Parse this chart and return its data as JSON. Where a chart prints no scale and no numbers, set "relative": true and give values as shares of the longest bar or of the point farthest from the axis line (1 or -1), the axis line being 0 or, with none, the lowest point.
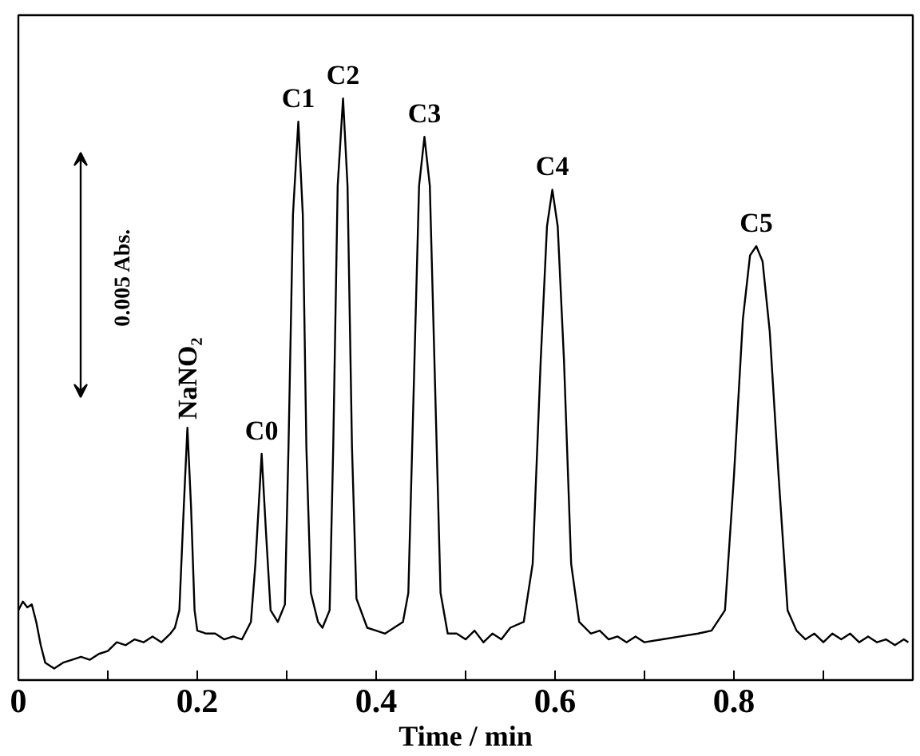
{
  "chart_data": {
    "type": "line",
    "relative": true,
    "xlabel": "Time / min",
    "xlim": [
      0,
      1.0
    ],
    "xticks": [
      0,
      {
        "value": 0.1,
        "label": null
      },
      0.2,
      {
        "value": 0.3,
        "label": null
      },
      0.4,
      {
        "value": 0.5,
        "label": null
      },
      0.6,
      {
        "value": 0.7,
        "label": null
      },
      0.8,
      {
        "value": 0.9,
        "label": null
      }
    ],
    "grid": false,
    "marker": "none",
    "line_style": "solid",
    "series": [
      {
        "color": "#000000",
        "x": [
          0.0,
          0.005,
          0.01,
          0.015,
          0.02,
          0.025,
          0.03,
          0.04,
          0.05,
          0.06,
          0.07,
          0.08,
          0.09,
          0.1,
          0.11,
          0.12,
          0.13,
          0.14,
          0.15,
          0.16,
          0.17,
          0.175,
          0.18,
          0.185,
          0.189,
          0.193,
          0.197,
          0.2,
          0.21,
          0.22,
          0.23,
          0.24,
          0.25,
          0.26,
          0.265,
          0.272,
          0.277,
          0.282,
          0.29,
          0.298,
          0.302,
          0.307,
          0.313,
          0.318,
          0.322,
          0.327,
          0.335,
          0.34,
          0.348,
          0.352,
          0.357,
          0.363,
          0.368,
          0.373,
          0.378,
          0.39,
          0.4,
          0.41,
          0.42,
          0.43,
          0.436,
          0.442,
          0.448,
          0.454,
          0.46,
          0.466,
          0.472,
          0.48,
          0.49,
          0.5,
          0.51,
          0.52,
          0.53,
          0.54,
          0.55,
          0.565,
          0.575,
          0.584,
          0.591,
          0.597,
          0.603,
          0.61,
          0.618,
          0.627,
          0.64,
          0.65,
          0.66,
          0.67,
          0.68,
          0.69,
          0.7,
          0.72,
          0.74,
          0.76,
          0.775,
          0.79,
          0.8,
          0.81,
          0.818,
          0.825,
          0.832,
          0.84,
          0.85,
          0.86,
          0.87,
          0.88,
          0.89,
          0.9,
          0.91,
          0.92,
          0.93,
          0.94,
          0.95,
          0.96,
          0.97,
          0.98,
          0.99,
          0.995
        ],
        "values": [
          0.12,
          0.135,
          0.125,
          0.13,
          0.1,
          0.06,
          0.03,
          0.02,
          0.03,
          0.035,
          0.04,
          0.035,
          0.045,
          0.05,
          0.065,
          0.06,
          0.07,
          0.065,
          0.075,
          0.065,
          0.08,
          0.09,
          0.12,
          0.3,
          0.434,
          0.3,
          0.12,
          0.085,
          0.08,
          0.08,
          0.07,
          0.075,
          0.07,
          0.1,
          0.2,
          0.389,
          0.25,
          0.12,
          0.1,
          0.13,
          0.4,
          0.8,
          0.96,
          0.8,
          0.4,
          0.15,
          0.1,
          0.09,
          0.12,
          0.4,
          0.85,
          1.0,
          0.85,
          0.4,
          0.14,
          0.09,
          0.085,
          0.08,
          0.09,
          0.1,
          0.15,
          0.5,
          0.85,
          0.934,
          0.85,
          0.5,
          0.15,
          0.08,
          0.08,
          0.07,
          0.085,
          0.065,
          0.08,
          0.07,
          0.09,
          0.1,
          0.2,
          0.55,
          0.78,
          0.843,
          0.78,
          0.55,
          0.2,
          0.1,
          0.08,
          0.085,
          0.07,
          0.075,
          0.065,
          0.075,
          0.065,
          0.07,
          0.075,
          0.08,
          0.085,
          0.12,
          0.35,
          0.62,
          0.73,
          0.746,
          0.72,
          0.6,
          0.35,
          0.12,
          0.085,
          0.07,
          0.08,
          0.065,
          0.08,
          0.07,
          0.08,
          0.065,
          0.075,
          0.065,
          0.07,
          0.06,
          0.07,
          0.065
        ]
      }
    ],
    "annotations": [
      {
        "text": "NaNO₂",
        "x": 0.189,
        "y": 0.434
      },
      {
        "text": "C0",
        "x": 0.272,
        "y": 0.389
      },
      {
        "text": "C1",
        "x": 0.313,
        "y": 0.96
      },
      {
        "text": "C2",
        "x": 0.363,
        "y": 1.0
      },
      {
        "text": "C3",
        "x": 0.454,
        "y": 0.934
      },
      {
        "text": "C4",
        "x": 0.597,
        "y": 0.843
      },
      {
        "text": "C5",
        "x": 0.825,
        "y": 0.746
      },
      "0.005 Abs."
    ]
  }
}
